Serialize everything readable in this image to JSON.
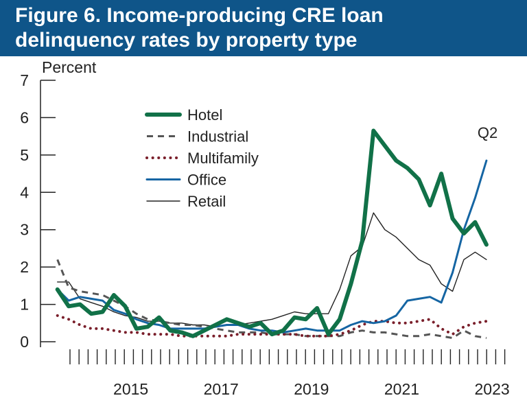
{
  "header": {
    "title_line1": "Figure 6. Income-producing CRE loan",
    "title_line2": "delinquency rates by property type"
  },
  "colors": {
    "title_bar": "#0f5589",
    "hotel": "#117148",
    "industrial": "#555555",
    "multifamily": "#7a1f2b",
    "office": "#1565a3",
    "retail": "#222222"
  },
  "chart_data": {
    "type": "line",
    "title": "Figure 6. Income-producing CRE loan delinquency rates by property type",
    "ylabel": "Percent",
    "ylim": [
      0,
      7
    ],
    "yticks": [
      0,
      1,
      2,
      3,
      4,
      5,
      6,
      7
    ],
    "xtick_labels": [
      "2015",
      "2017",
      "2019",
      "2021",
      "2023"
    ],
    "xtick_values": [
      2015.5,
      2017.5,
      2019.5,
      2021.5,
      2023.5
    ],
    "xlim": [
      2013.5,
      2024.0
    ],
    "legend_position": "upper-left-inside",
    "annotations": [
      {
        "text": "Q2",
        "x": 2023.4,
        "y": 5.6
      }
    ],
    "x": [
      2013.875,
      2014.125,
      2014.375,
      2014.625,
      2014.875,
      2015.125,
      2015.375,
      2015.625,
      2015.875,
      2016.125,
      2016.375,
      2016.625,
      2016.875,
      2017.125,
      2017.375,
      2017.625,
      2017.875,
      2018.125,
      2018.375,
      2018.625,
      2018.875,
      2019.125,
      2019.375,
      2019.625,
      2019.875,
      2020.125,
      2020.375,
      2020.625,
      2020.875,
      2021.125,
      2021.375,
      2021.625,
      2021.875,
      2022.125,
      2022.375,
      2022.625,
      2022.875,
      2023.125,
      2023.375
    ],
    "series": [
      {
        "name": "Hotel",
        "style": "solid-thick",
        "values": [
          1.4,
          0.95,
          1.0,
          0.75,
          0.8,
          1.25,
          0.95,
          0.35,
          0.4,
          0.65,
          0.3,
          0.25,
          0.15,
          0.3,
          0.45,
          0.6,
          0.5,
          0.4,
          0.5,
          0.2,
          0.3,
          0.65,
          0.6,
          0.9,
          0.2,
          0.6,
          1.55,
          2.7,
          5.65,
          5.25,
          4.85,
          4.65,
          4.35,
          3.65,
          4.5,
          3.3,
          2.9,
          3.2,
          2.6
        ]
      },
      {
        "name": "Industrial",
        "style": "dashed",
        "values": [
          2.2,
          1.45,
          1.35,
          1.3,
          1.25,
          1.1,
          0.95,
          0.75,
          0.6,
          0.55,
          0.5,
          0.45,
          0.45,
          0.4,
          0.35,
          0.3,
          0.25,
          0.25,
          0.25,
          0.2,
          0.2,
          0.2,
          0.15,
          0.15,
          0.15,
          0.15,
          0.25,
          0.3,
          0.25,
          0.25,
          0.2,
          0.15,
          0.15,
          0.2,
          0.15,
          0.1,
          0.3,
          0.15,
          0.1
        ]
      },
      {
        "name": "Multifamily",
        "style": "dotted",
        "values": [
          0.7,
          0.6,
          0.45,
          0.35,
          0.35,
          0.3,
          0.25,
          0.25,
          0.2,
          0.2,
          0.2,
          0.15,
          0.15,
          0.15,
          0.15,
          0.15,
          0.2,
          0.2,
          0.2,
          0.2,
          0.2,
          0.2,
          0.15,
          0.15,
          0.15,
          0.2,
          0.3,
          0.45,
          0.55,
          0.55,
          0.5,
          0.5,
          0.55,
          0.6,
          0.35,
          0.2,
          0.4,
          0.5,
          0.55
        ]
      },
      {
        "name": "Office",
        "style": "solid",
        "values": [
          1.4,
          1.1,
          1.2,
          1.15,
          1.1,
          0.85,
          0.75,
          0.6,
          0.5,
          0.45,
          0.35,
          0.35,
          0.35,
          0.35,
          0.4,
          0.45,
          0.45,
          0.35,
          0.3,
          0.3,
          0.25,
          0.3,
          0.35,
          0.3,
          0.3,
          0.3,
          0.45,
          0.55,
          0.5,
          0.55,
          0.7,
          1.1,
          1.15,
          1.2,
          1.05,
          1.85,
          3.0,
          3.85,
          4.85
        ]
      },
      {
        "name": "Retail",
        "style": "solid-thin",
        "values": [
          1.6,
          1.6,
          1.15,
          1.05,
          0.95,
          0.8,
          0.7,
          0.65,
          0.55,
          0.55,
          0.5,
          0.5,
          0.45,
          0.45,
          0.4,
          0.45,
          0.45,
          0.5,
          0.55,
          0.6,
          0.7,
          0.8,
          0.75,
          0.75,
          0.75,
          1.4,
          2.3,
          2.55,
          3.45,
          3.0,
          2.8,
          2.5,
          2.2,
          2.05,
          1.55,
          1.35,
          2.2,
          2.4,
          2.2
        ]
      }
    ]
  }
}
